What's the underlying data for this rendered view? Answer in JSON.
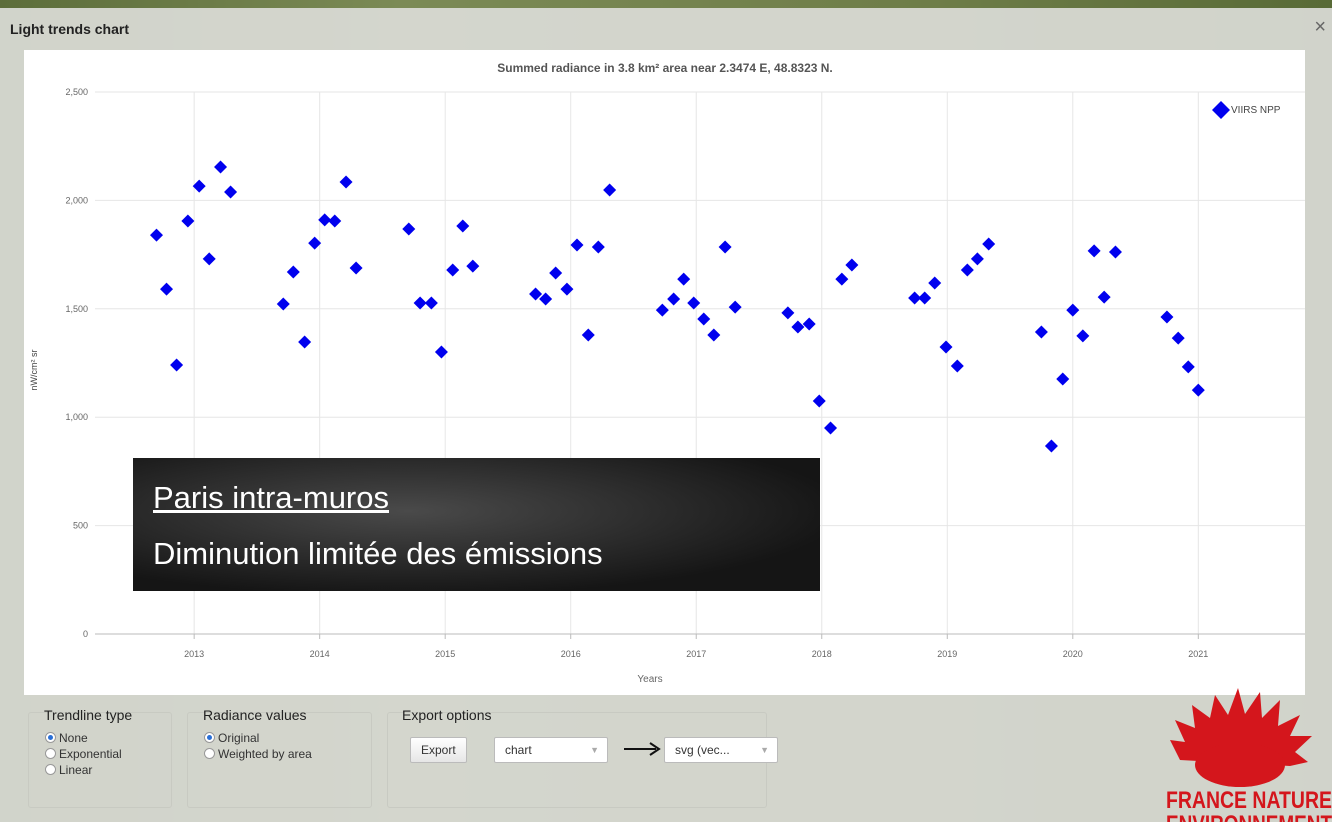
{
  "window": {
    "title": "Light trends chart",
    "close": "×"
  },
  "chart_data": {
    "type": "scatter",
    "title": "Summed radiance in 3.8 km² area near 2.3474 E, 48.8323 N.",
    "x_label": "Years",
    "y_label": "nW/cm² sr",
    "xlim": [
      2012.21,
      2021.85
    ],
    "xticks": [
      2013,
      2014,
      2015,
      2016,
      2017,
      2018,
      2019,
      2020,
      2021
    ],
    "ylim": [
      0,
      2500
    ],
    "yticks": [
      0,
      500,
      {
        "value": 1000,
        "label": "1,000"
      },
      {
        "value": 1500,
        "label": "1,500"
      },
      {
        "value": 2000,
        "label": "2,000"
      },
      {
        "value": 2500,
        "label": "2,500"
      }
    ],
    "grid": true,
    "legend": "upper-right",
    "series": [
      {
        "name": "VIIRS NPP",
        "color": "#0000ee",
        "x": [
          2012.7,
          2012.78,
          2012.86,
          2012.95,
          2013.04,
          2013.12,
          2013.21,
          2013.29,
          2013.71,
          2013.79,
          2013.88,
          2013.96,
          2014.04,
          2014.12,
          2014.21,
          2014.29,
          2014.71,
          2014.8,
          2014.89,
          2014.97,
          2015.06,
          2015.14,
          2015.22,
          2015.72,
          2015.8,
          2015.88,
          2015.97,
          2016.05,
          2016.14,
          2016.22,
          2016.31,
          2016.73,
          2016.82,
          2016.9,
          2016.98,
          2017.06,
          2017.14,
          2017.23,
          2017.31,
          2017.73,
          2017.81,
          2017.9,
          2017.98,
          2018.07,
          2018.16,
          2018.24,
          2018.74,
          2018.82,
          2018.9,
          2018.99,
          2019.08,
          2019.16,
          2019.24,
          2019.33,
          2019.75,
          2019.83,
          2019.92,
          2020.0,
          2020.08,
          2020.17,
          2020.25,
          2020.34,
          2020.75,
          2020.84,
          2020.92,
          2021.0
        ],
        "values": [
          1840,
          1591,
          1241,
          1905,
          2066,
          1730,
          2154,
          2039,
          1522,
          1670,
          1347,
          1803,
          1910,
          1905,
          2085,
          1688,
          1868,
          1527,
          1527,
          1301,
          1679,
          1882,
          1697,
          1568,
          1545,
          1665,
          1591,
          1794,
          1379,
          1785,
          2048,
          1494,
          1545,
          1637,
          1527,
          1453,
          1379,
          1785,
          1508,
          1481,
          1416,
          1430,
          1075,
          950,
          1637,
          1702,
          1550,
          1550,
          1619,
          1324,
          1236,
          1679,
          1730,
          1799,
          1393,
          867,
          1176,
          1494,
          1375,
          1767,
          1554,
          1762,
          1462,
          1365,
          1232,
          1125
        ]
      }
    ]
  },
  "annotation": {
    "title": "Paris intra-muros",
    "text": "Diminution limitée des émissions"
  },
  "controls": {
    "trendline": {
      "label": "Trendline type",
      "options": [
        "None",
        "Exponential",
        "Linear"
      ],
      "selected": 0
    },
    "radiance": {
      "label": "Radiance values",
      "options": [
        "Original",
        "Weighted by area"
      ],
      "selected": 0
    },
    "export": {
      "label": "Export options",
      "button": "Export",
      "format_select": "chart",
      "type_select": "svg (vec..."
    }
  },
  "logo": {
    "lines": [
      "FRANCE NATURE",
      "ENVIRONNEMENT"
    ]
  }
}
